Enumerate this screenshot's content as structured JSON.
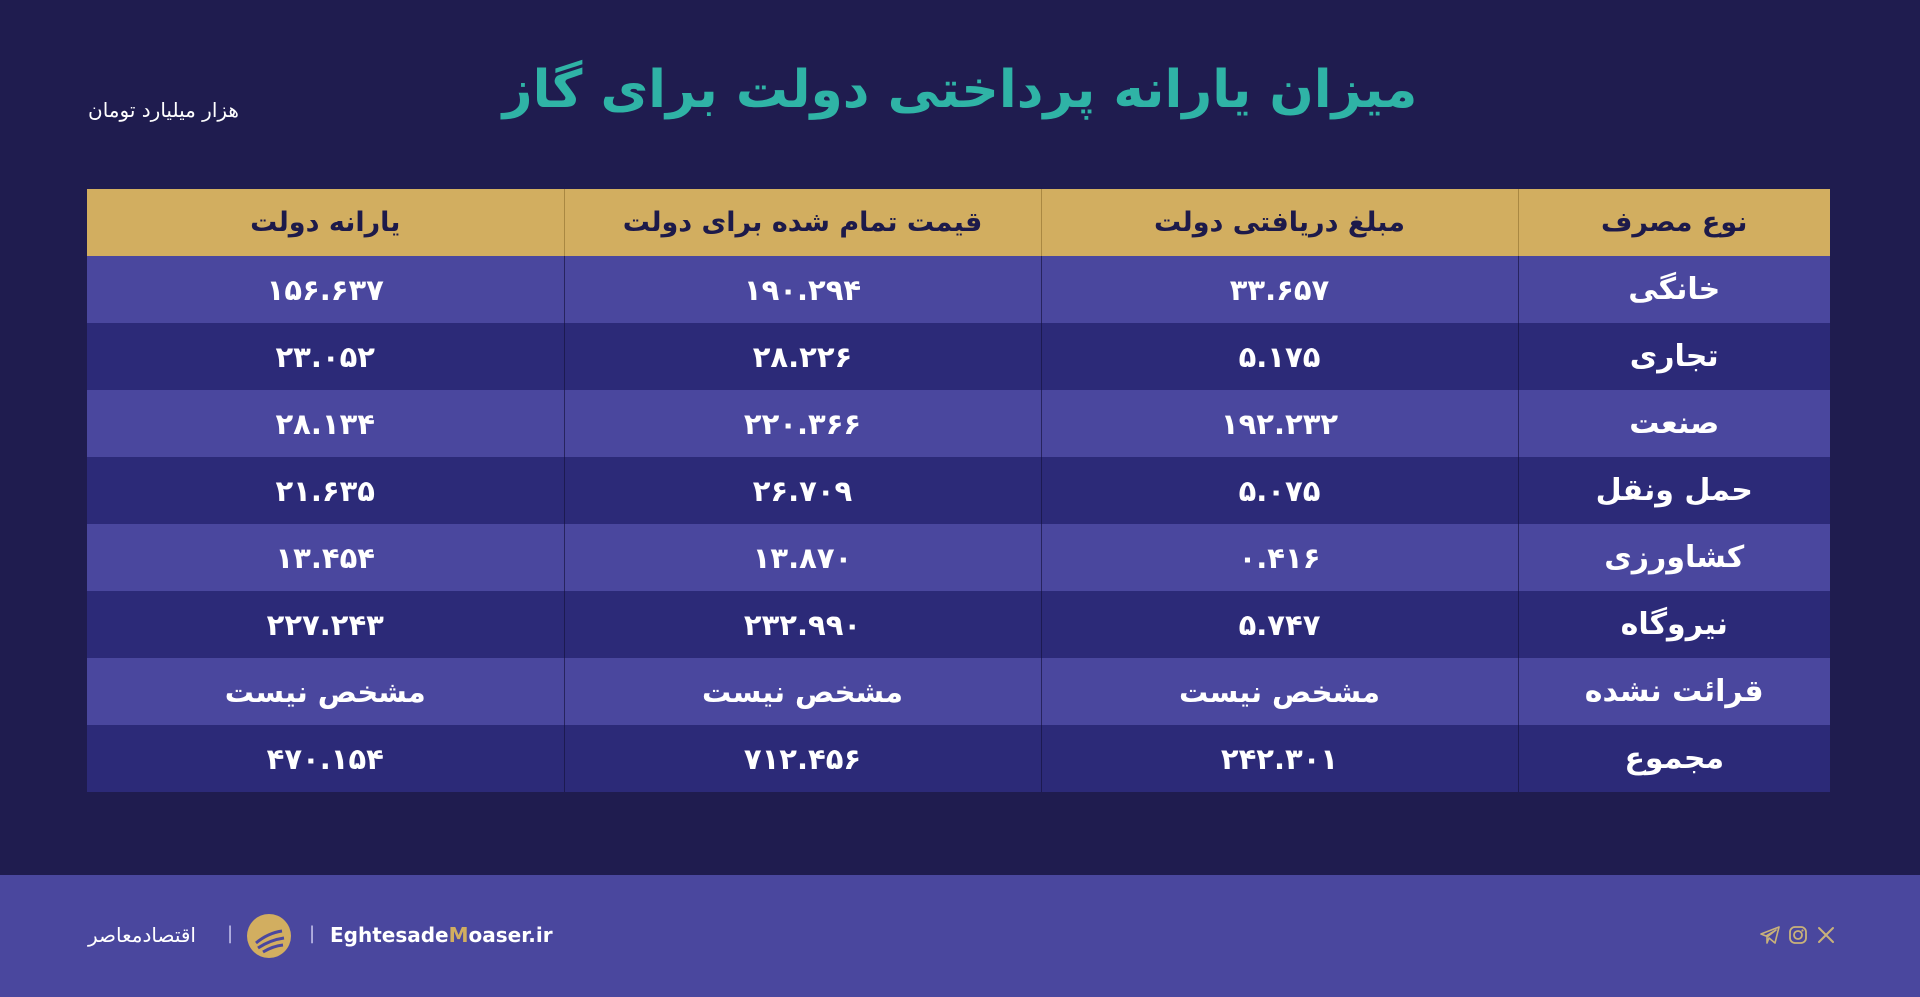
{
  "header": {
    "title": "میزان یارانه پرداختی دولت برای گاز",
    "unit": "هزار میلیارد تومان"
  },
  "table": {
    "columns": [
      "نوع مصرف",
      "مبلغ دریافتی دولت",
      "قیمت تمام شده  برای دولت",
      "یارانه دولت"
    ],
    "rows": [
      [
        "خانگی",
        "۳۳.۶۵۷",
        "۱۹۰.۲۹۴",
        "۱۵۶.۶۳۷"
      ],
      [
        "تجاری",
        "۵.۱۷۵",
        "۲۸.۲۲۶",
        "۲۳.۰۵۲"
      ],
      [
        "صنعت",
        "۱۹۲.۲۳۲",
        "۲۲۰.۳۶۶",
        "۲۸.۱۳۴"
      ],
      [
        "حمل ونقل",
        "۵.۰۷۵",
        "۲۶.۷۰۹",
        "۲۱.۶۳۵"
      ],
      [
        "کشاورزی",
        "۰.۴۱۶",
        "۱۳.۸۷۰",
        "۱۳.۴۵۴"
      ],
      [
        "نیروگاه",
        "۵.۷۴۷",
        "۲۳۲.۹۹۰",
        "۲۲۷.۲۴۳"
      ],
      [
        "قرائت نشده",
        "مشخص نیست",
        "مشخص نیست",
        "مشخص نیست"
      ],
      [
        "مجموع",
        "۲۴۲.۳۰۱",
        "۷۱۲.۴۵۶",
        "۴۷۰.۱۵۴"
      ]
    ]
  },
  "footer": {
    "brand_fa": "اقتصادمعاصر",
    "separator": "|",
    "site_prefix": "Eghtesade",
    "site_accent": "M",
    "site_suffix": "oaser.ir",
    "social_icons": [
      "x-icon",
      "instagram-icon",
      "telegram-icon"
    ]
  },
  "colors": {
    "background": "#1f1c4f",
    "title": "#2fb3a6",
    "header_row": "#d2ae60",
    "row_light": "#4a479e",
    "row_dark": "#2c2a78",
    "footer": "#4a479e"
  }
}
